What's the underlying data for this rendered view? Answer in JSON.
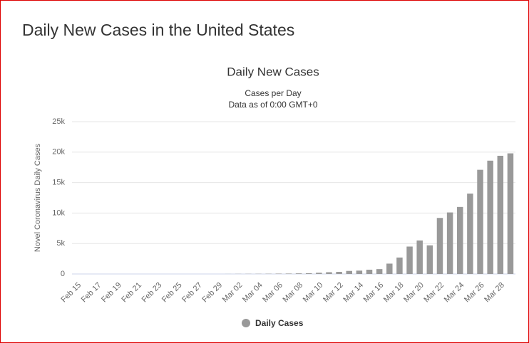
{
  "page": {
    "title": "Daily New Cases in the United States"
  },
  "chart_data": {
    "type": "bar",
    "title": "Daily New Cases",
    "subtitle": [
      "Cases per Day",
      "Data as of 0:00 GMT+0"
    ],
    "y_label": "Novel Coronavirus Daily Cases",
    "categories": [
      "Feb 15",
      null,
      "Feb 17",
      null,
      "Feb 19",
      null,
      "Feb 21",
      null,
      "Feb 23",
      null,
      "Feb 25",
      null,
      "Feb 27",
      null,
      "Feb 29",
      null,
      "Mar 02",
      null,
      "Mar 04",
      null,
      "Mar 06",
      null,
      "Mar 08",
      null,
      "Mar 10",
      null,
      "Mar 12",
      null,
      "Mar 14",
      null,
      "Mar 16",
      null,
      "Mar 18",
      null,
      "Mar 20",
      null,
      "Mar 22",
      null,
      "Mar 24",
      null,
      "Mar 26",
      null,
      "Mar 28",
      null
    ],
    "series": [
      {
        "name": "Daily Cases",
        "color": "#999999",
        "values": [
          0,
          0,
          0,
          0,
          0,
          0,
          0,
          0,
          0,
          0,
          0,
          0,
          0,
          0,
          0,
          10,
          20,
          25,
          30,
          40,
          60,
          70,
          100,
          120,
          200,
          290,
          350,
          500,
          550,
          700,
          800,
          1700,
          2700,
          4500,
          5500,
          4700,
          9200,
          10100,
          11000,
          13200,
          17100,
          18600,
          19400,
          19800
        ]
      }
    ],
    "ylim": [
      0,
      25000
    ],
    "yticks": [
      0,
      {
        "value": 5000,
        "label": "5k"
      },
      {
        "value": 10000,
        "label": "10k"
      },
      {
        "value": 15000,
        "label": "15k"
      },
      {
        "value": 20000,
        "label": "20k"
      },
      {
        "value": 25000,
        "label": "25k"
      }
    ],
    "grid": true
  }
}
